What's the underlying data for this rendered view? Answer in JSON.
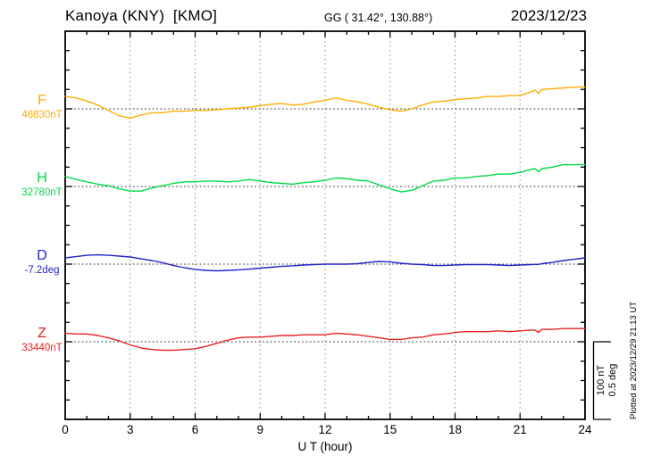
{
  "header": {
    "station_title": "Kanoya (KNY)  [KMO]",
    "coordinates": "GG ( 31.42°, 130.88°)",
    "date": "2023/12/23"
  },
  "components": [
    {
      "id": "F",
      "label": "F",
      "base_label": "46830nT",
      "base": 46830,
      "unit": "nT",
      "color": "#FFAC00"
    },
    {
      "id": "H",
      "label": "H",
      "base_label": "32780nT",
      "base": 32780,
      "unit": "nT",
      "color": "#00DC46"
    },
    {
      "id": "D",
      "label": "D",
      "base_label": "-7.2deg",
      "base": -7.2,
      "unit": "deg",
      "color": "#2323CC"
    },
    {
      "id": "Z",
      "label": "Z",
      "base_label": "33440nT",
      "base": 33440,
      "unit": "nT",
      "color": "#EA2222"
    }
  ],
  "xaxis": {
    "label": "U T (hour)",
    "ticks": [
      0,
      3,
      6,
      9,
      12,
      15,
      18,
      21,
      24
    ],
    "minor_step_hours": 1,
    "range": [
      0,
      24
    ]
  },
  "scale_bar": {
    "label_nT": "100 nT",
    "label_deg": "0.5 deg",
    "nT_per_div": 100,
    "deg_per_div": 0.5
  },
  "footer_note": "Plotted at 2023/12/29 21:13 UT",
  "chart_data": {
    "type": "line",
    "title": "Kanoya (KNY) [KMO] magnetogram, 2023/12/23",
    "xlabel": "U T (hour)",
    "xlim": [
      0,
      24
    ],
    "x_major_ticks": [
      0,
      3,
      6,
      9,
      12,
      15,
      18,
      21,
      24
    ],
    "grid": "dotted vertical lines every 3 h; dotted horizontal line at each component baseline",
    "scale": {
      "nT_per_div": 100,
      "deg_per_div": 0.5
    },
    "x": [
      0,
      0.5,
      1,
      1.5,
      2,
      2.5,
      3,
      3.5,
      4,
      4.5,
      5,
      5.5,
      6,
      6.5,
      7,
      7.5,
      8,
      8.5,
      9,
      9.5,
      10,
      10.5,
      11,
      11.5,
      12,
      12.5,
      13,
      13.5,
      14,
      14.5,
      15,
      15.5,
      16,
      16.5,
      17,
      17.5,
      18,
      18.5,
      19,
      19.5,
      20,
      20.5,
      21,
      21.5,
      21.7,
      21.85,
      22,
      22.5,
      23,
      23.5,
      24
    ],
    "series": [
      {
        "name": "F",
        "unit": "nT",
        "baseline": 46830,
        "values": [
          46846,
          46844,
          46840,
          46835,
          46828,
          46821,
          46818,
          46822,
          46825,
          46825,
          46827,
          46827,
          46828,
          46828,
          46829,
          46830,
          46831,
          46832,
          46834,
          46836,
          46837,
          46835,
          46836,
          46839,
          46841,
          46844,
          46841,
          46839,
          46836,
          46832,
          46829,
          46827,
          46830,
          46835,
          46839,
          46840,
          46842,
          46843,
          46844,
          46846,
          46846,
          46847,
          46847,
          46852,
          46854,
          46850,
          46855,
          46856,
          46857,
          46858,
          46858
        ]
      },
      {
        "name": "H",
        "unit": "nT",
        "baseline": 32780,
        "values": [
          32793,
          32789,
          32786,
          32783,
          32781,
          32777,
          32774,
          32774,
          32778,
          32781,
          32784,
          32786,
          32786,
          32787,
          32787,
          32786,
          32787,
          32789,
          32787,
          32785,
          32784,
          32783,
          32785,
          32786,
          32788,
          32791,
          32790,
          32788,
          32787,
          32782,
          32777,
          32773,
          32775,
          32781,
          32787,
          32788,
          32791,
          32791,
          32793,
          32794,
          32796,
          32796,
          32798,
          32802,
          32803,
          32799,
          32803,
          32805,
          32808,
          32808,
          32808
        ]
      },
      {
        "name": "D",
        "unit": "deg",
        "baseline": -7.2,
        "values": [
          -7.16,
          -7.152,
          -7.143,
          -7.14,
          -7.143,
          -7.148,
          -7.154,
          -7.166,
          -7.177,
          -7.191,
          -7.209,
          -7.223,
          -7.234,
          -7.24,
          -7.243,
          -7.24,
          -7.237,
          -7.232,
          -7.226,
          -7.22,
          -7.214,
          -7.211,
          -7.206,
          -7.203,
          -7.2,
          -7.2,
          -7.2,
          -7.197,
          -7.189,
          -7.183,
          -7.186,
          -7.194,
          -7.2,
          -7.203,
          -7.209,
          -7.209,
          -7.206,
          -7.203,
          -7.203,
          -7.203,
          -7.206,
          -7.209,
          -7.206,
          -7.203,
          -7.202,
          -7.202,
          -7.197,
          -7.189,
          -7.177,
          -7.169,
          -7.16
        ]
      },
      {
        "name": "Z",
        "unit": "nT",
        "baseline": 33440,
        "values": [
          33451,
          33450,
          33450,
          33448,
          33445,
          33441,
          33436,
          33432,
          33430,
          33429,
          33429,
          33430,
          33431,
          33434,
          33438,
          33442,
          33445,
          33446,
          33446,
          33447,
          33448,
          33448,
          33449,
          33449,
          33449,
          33451,
          33450,
          33449,
          33447,
          33445,
          33443,
          33443,
          33445,
          33446,
          33449,
          33450,
          33452,
          33453,
          33453,
          33453,
          33454,
          33453,
          33454,
          33455,
          33455,
          33452,
          33456,
          33456,
          33457,
          33457,
          33457
        ]
      }
    ]
  }
}
